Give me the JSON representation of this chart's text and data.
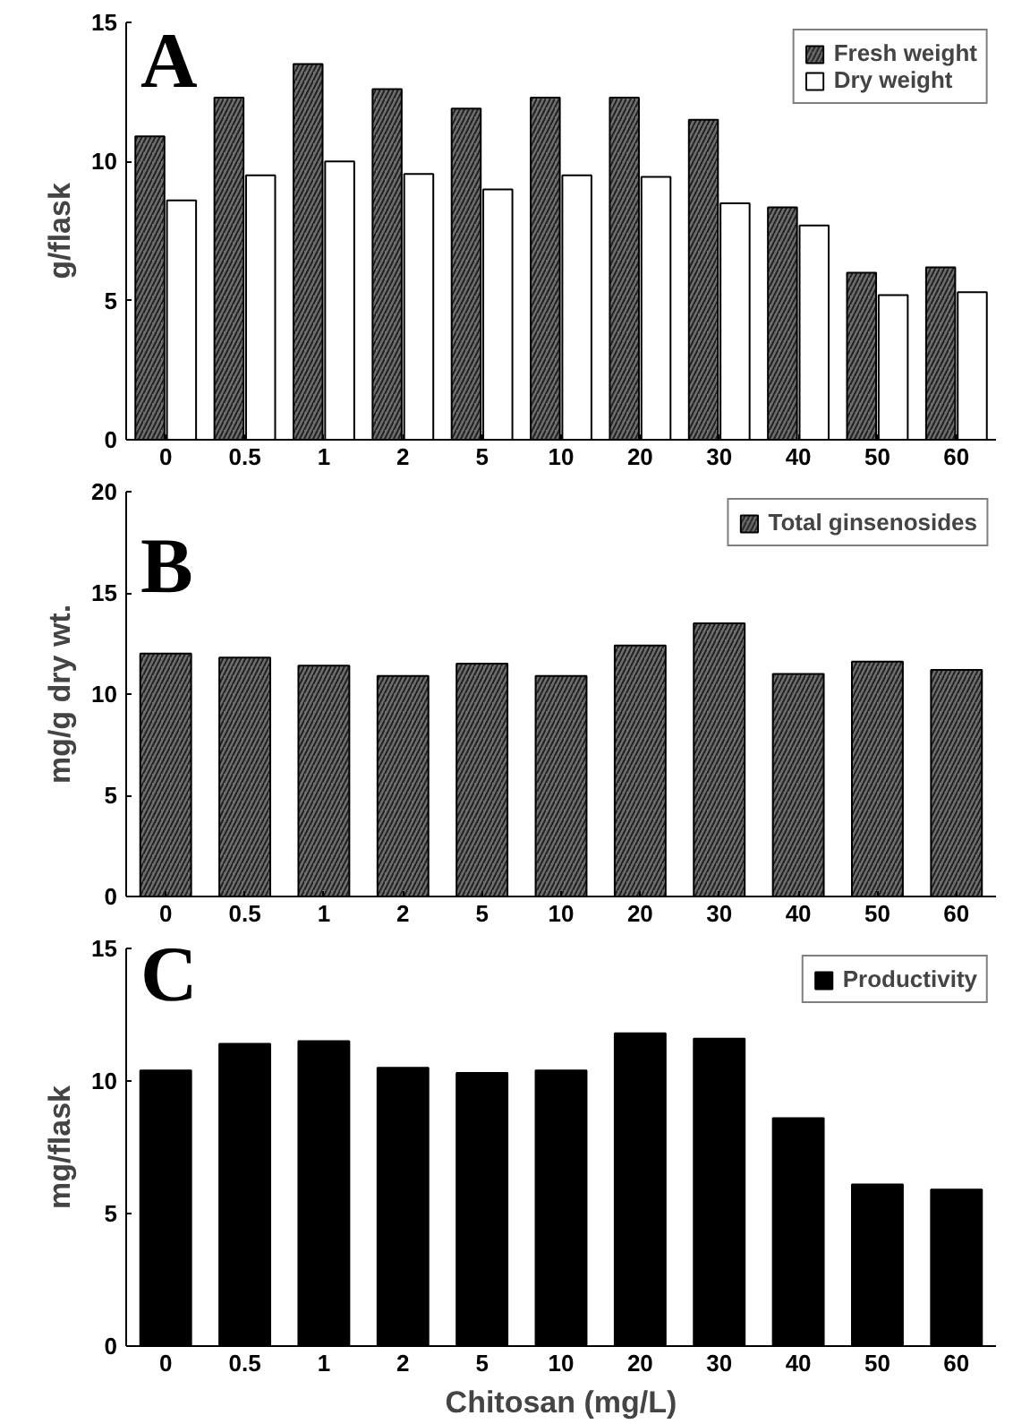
{
  "chart_data": [
    {
      "type": "bar",
      "categories": [
        "0",
        "0.5",
        "1",
        "2",
        "5",
        "10",
        "20",
        "30",
        "40",
        "50",
        "60"
      ],
      "ylabel": "g/flask",
      "ylim": [
        0,
        15
      ],
      "yticks": [
        0,
        5,
        10,
        15
      ],
      "legend": "top right",
      "grid": false,
      "annotations": [
        "A"
      ],
      "series": [
        {
          "name": "Fresh weight",
          "color": "#6e6e6e",
          "values": [
            10.9,
            12.3,
            13.5,
            12.6,
            11.9,
            12.3,
            12.3,
            11.5,
            8.35,
            6.0,
            6.2
          ]
        },
        {
          "name": "Dry weight",
          "color": "#ffffff",
          "values": [
            8.6,
            9.5,
            10.0,
            9.55,
            9.0,
            9.5,
            9.45,
            8.5,
            7.7,
            5.2,
            5.3
          ]
        }
      ]
    },
    {
      "type": "bar",
      "categories": [
        "0",
        "0.5",
        "1",
        "2",
        "5",
        "10",
        "20",
        "30",
        "40",
        "50",
        "60"
      ],
      "ylabel": "mg/g dry wt.",
      "ylim": [
        0,
        20
      ],
      "yticks": [
        0,
        5,
        10,
        15,
        20
      ],
      "legend": "top right",
      "grid": false,
      "annotations": [
        "B"
      ],
      "series": [
        {
          "name": "Total ginsenosides",
          "color": "#6e6e6e",
          "values": [
            12.0,
            11.8,
            11.4,
            10.9,
            11.5,
            10.9,
            12.4,
            13.5,
            11.0,
            11.6,
            11.2
          ]
        }
      ]
    },
    {
      "type": "bar",
      "categories": [
        "0",
        "0.5",
        "1",
        "2",
        "5",
        "10",
        "20",
        "30",
        "40",
        "50",
        "60"
      ],
      "xlabel": "Chitosan (mg/L)",
      "ylabel": "mg/flask",
      "ylim": [
        0,
        15
      ],
      "yticks": [
        0,
        5,
        10,
        15
      ],
      "legend": "top right",
      "grid": false,
      "annotations": [
        "C"
      ],
      "series": [
        {
          "name": "Productivity",
          "color": "#000000",
          "values": [
            10.4,
            11.4,
            11.5,
            10.5,
            10.3,
            10.4,
            11.8,
            11.6,
            8.6,
            6.1,
            5.9
          ]
        }
      ]
    }
  ]
}
